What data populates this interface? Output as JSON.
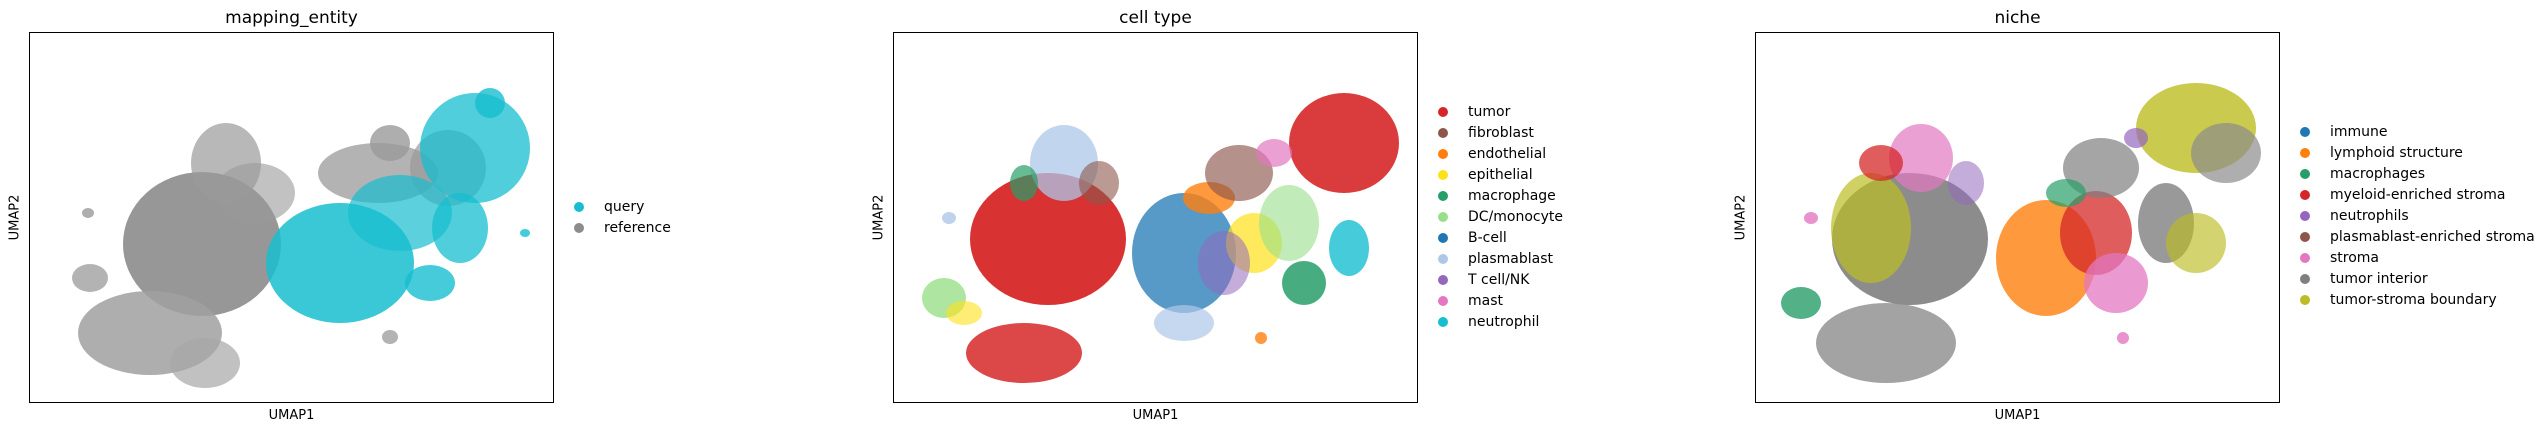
{
  "chart_data": [
    {
      "type": "scatter",
      "title": "mapping_entity",
      "xlabel": "UMAP1",
      "ylabel": "UMAP2",
      "legend_position": "right",
      "series": [
        {
          "name": "query",
          "color": "#17becf"
        },
        {
          "name": "reference",
          "color": "#8c8c8c"
        }
      ]
    },
    {
      "type": "scatter",
      "title": "cell type",
      "xlabel": "UMAP1",
      "ylabel": "UMAP2",
      "legend_position": "right",
      "series": [
        {
          "name": "tumor",
          "color": "#d62728"
        },
        {
          "name": "fibroblast",
          "color": "#8c564b"
        },
        {
          "name": "endothelial",
          "color": "#ff7f0e"
        },
        {
          "name": "epithelial",
          "color": "#ffe119"
        },
        {
          "name": "macrophage",
          "color": "#279e68"
        },
        {
          "name": "DC/monocyte",
          "color": "#98df8a"
        },
        {
          "name": "B-cell",
          "color": "#1f77b4"
        },
        {
          "name": "plasmablast",
          "color": "#aec7e8"
        },
        {
          "name": "T cell/NK",
          "color": "#9467bd"
        },
        {
          "name": "mast",
          "color": "#e377c2"
        },
        {
          "name": "neutrophil",
          "color": "#17becf"
        }
      ]
    },
    {
      "type": "scatter",
      "title": "niche",
      "xlabel": "UMAP1",
      "ylabel": "UMAP2",
      "legend_position": "right",
      "series": [
        {
          "name": "immune",
          "color": "#1f77b4"
        },
        {
          "name": "lymphoid structure",
          "color": "#ff7f0e"
        },
        {
          "name": "macrophages",
          "color": "#279e68"
        },
        {
          "name": "myeloid-enriched stroma",
          "color": "#d62728"
        },
        {
          "name": "neutrophils",
          "color": "#9467bd"
        },
        {
          "name": "plasmablast-enriched stroma",
          "color": "#8c564b"
        },
        {
          "name": "stroma",
          "color": "#e377c2"
        },
        {
          "name": "tumor interior",
          "color": "#7f7f7f"
        },
        {
          "name": "tumor-stroma boundary",
          "color": "#bcbd22"
        }
      ]
    }
  ]
}
